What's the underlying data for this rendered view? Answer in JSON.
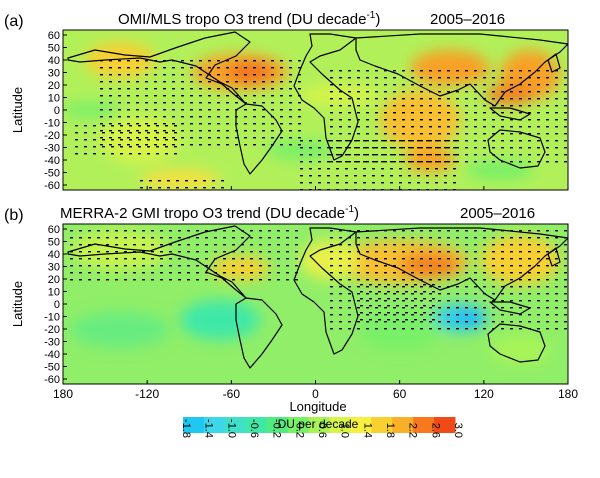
{
  "panels": [
    {
      "letter": "(a)",
      "title_pre": "OMI/MLS  tropo O3 trend (DU decade",
      "title_sup": "-1",
      "title_post": ")",
      "period": "2005–2016"
    },
    {
      "letter": "(b)",
      "title_pre": "MERRA-2  GMI tropo O3  trend (DU decade",
      "title_sup": "-1",
      "title_post": ")",
      "period": "2005–2016"
    }
  ],
  "axes": {
    "ylabel": "Latitude",
    "xlabel": "Longitude",
    "lat_ticks": [
      "60",
      "50",
      "40",
      "30",
      "20",
      "10",
      "0",
      "-10",
      "-20",
      "-30",
      "-40",
      "-50",
      "-60"
    ],
    "lon_ticks": [
      "180",
      "-120",
      "-60",
      "0",
      "60",
      "120",
      "180"
    ]
  },
  "colorbar": {
    "label": "DU  per  decade",
    "ticks": [
      "-1.8",
      "-1.4",
      "-1.0",
      "-0.6",
      "-0.2",
      "0.2",
      "0.6",
      "1.0",
      "1.4",
      "1.8",
      "2.2",
      "2.6",
      "3.0"
    ],
    "colors": [
      "#1ec8f0",
      "#3cd8ea",
      "#40e0c8",
      "#40e8a8",
      "#50ec80",
      "#78f068",
      "#a8f458",
      "#d8f448",
      "#f8f040",
      "#f8d030",
      "#f8b028",
      "#f87820",
      "#f04a18"
    ]
  }
}
